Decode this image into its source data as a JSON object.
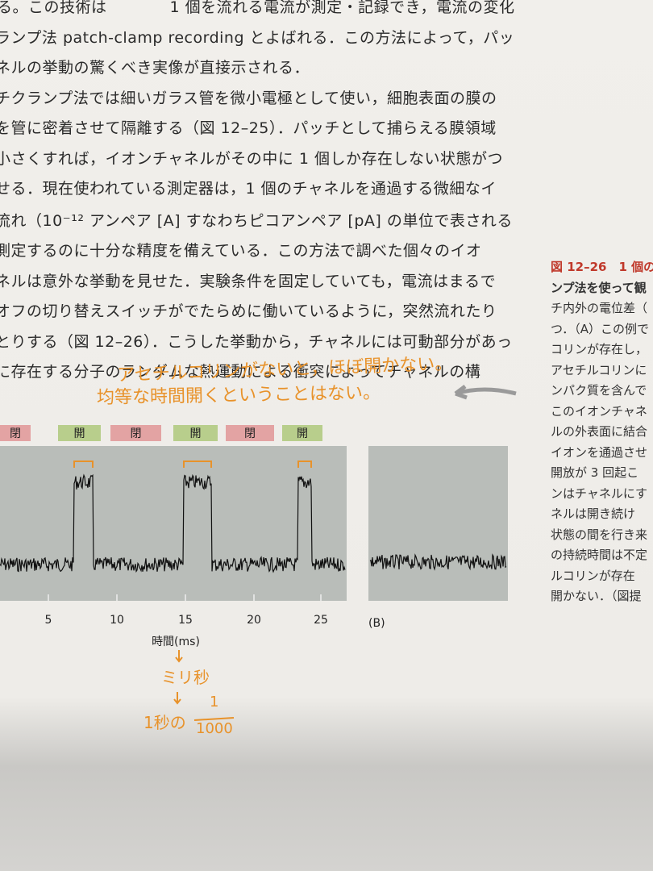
{
  "body_lines": [
    "る。この技術は　　　　1 個を流れる電流が測定・記録でき，電流の変化",
    "ランプ法 patch-clamp recording とよばれる．この方法によって，パッ",
    "ネルの挙動の驚くべき実像が直接示される．",
    "チクランプ法では細いガラス管を微小電極として使い，細胞表面の膜の",
    "を管に密着させて隔離する（図 12–25）．パッチとして捕らえる膜領域",
    "小さくすれば，イオンチャネルがその中に 1 個しか存在しない状態がつ",
    "せる．現在使われている測定器は，1 個のチャネルを通過する微細なイ",
    "流れ（10⁻¹² アンペア [A] すなわちピコアンペア [pA] の単位で表される",
    "測定するのに十分な精度を備えている．この方法で調べた個々のイオ",
    "ネルは意外な挙動を見せた．実験条件を固定していても，電流はまるで",
    "オフの切り替えスイッチがでたらめに働いているように，突然流れたり",
    "とりする（図 12–26）．こうした挙動から，チャネルには可動部分があっ",
    "に存在する分子のランダムな熱運動による衝突によってチャネルの構"
  ],
  "side_caption": [
    "図 12–26　1 個の",
    "ンプ法を使って観",
    "チ内外の電位差（",
    "つ．（A）この例で",
    "コリンが存在し，",
    "アセチルコリンに",
    "ンパク質を含んで",
    "このイオンチャネ",
    "ルの外表面に結合",
    "イオンを通過させ",
    "開放が 3 回起こ",
    "ンはチャネルにす",
    "ネルは開き続け",
    "状態の間を行き来",
    "の持続時間は不定",
    "ルコリンが存在",
    "開かない．（図提"
  ],
  "handwriting": {
    "note_1": "アセチルコリンがないと，ほぼ開かない。",
    "note_2": "均等な時間開くということはない。",
    "millisecond": "ミリ秒",
    "one_second": "1秒の",
    "numerator": "1",
    "denominator": "1000"
  },
  "figure": {
    "states": [
      "閉",
      "開",
      "閉",
      "開",
      "閉",
      "開"
    ],
    "x_ticks": [
      "5",
      "10",
      "15",
      "20",
      "25"
    ],
    "x_label": "時間(ms)",
    "panel_b": "(B)"
  }
}
